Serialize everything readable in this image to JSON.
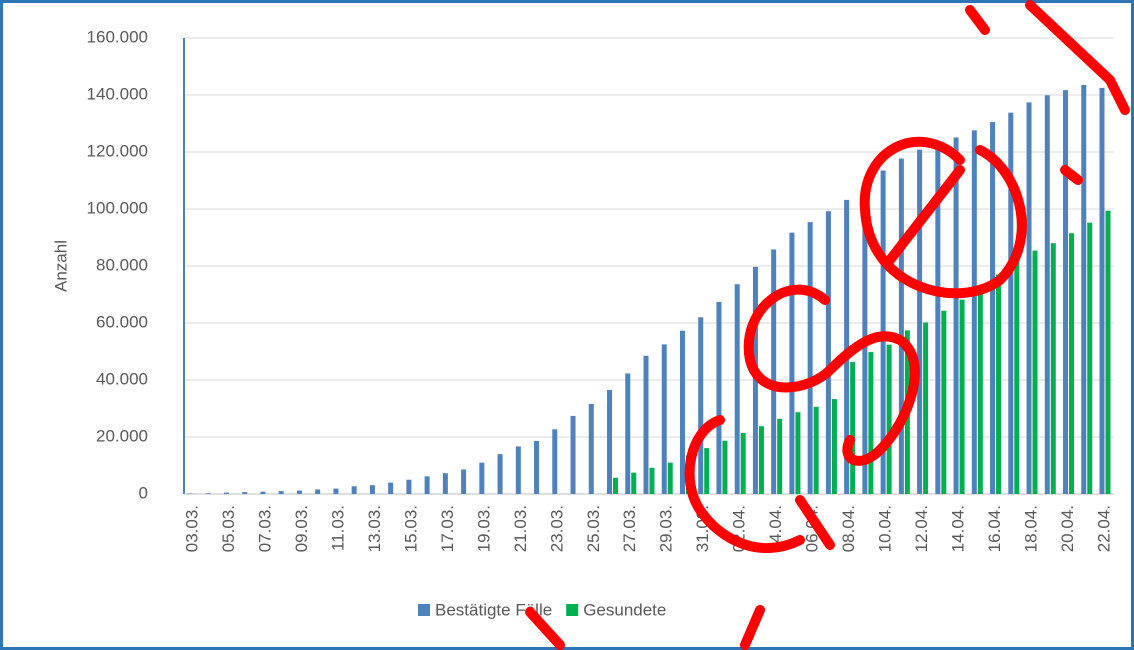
{
  "chart_data": {
    "type": "bar",
    "categories": [
      "03.03.",
      null,
      "05.03.",
      null,
      "07.03.",
      null,
      "09.03.",
      null,
      "11.03.",
      null,
      "13.03.",
      null,
      "15.03.",
      null,
      "17.03.",
      null,
      "19.03.",
      null,
      "21.03.",
      null,
      "23.03.",
      null,
      "25.03.",
      null,
      "27.03.",
      null,
      "29.03.",
      null,
      "31.03.",
      null,
      "02.04.",
      null,
      "04.04.",
      null,
      "06.04.",
      null,
      "08.04.",
      null,
      "10.04.",
      null,
      "12.04.",
      null,
      "14.04.",
      null,
      "16.04.",
      null,
      "18.04.",
      null,
      "20.04.",
      null,
      "22.04."
    ],
    "series": [
      {
        "name": "Bestätigte Fälle",
        "color": "#4f81bd",
        "values": [
          200,
          260,
          480,
          670,
          800,
          1000,
          1200,
          1600,
          1900,
          2700,
          3100,
          4000,
          5000,
          6200,
          7300,
          8600,
          11000,
          14000,
          16700,
          18600,
          22700,
          27400,
          31600,
          36500,
          42300,
          48500,
          52500,
          57300,
          62000,
          67400,
          73600,
          79700,
          85800,
          91700,
          95400,
          99200,
          103200,
          108200,
          113500,
          117700,
          120800,
          123000,
          125100,
          127600,
          130500,
          133800,
          137400,
          139900,
          141700,
          143500,
          142500
        ]
      },
      {
        "name": "Gesundete",
        "color": "#00b050",
        "values": [
          0,
          0,
          0,
          0,
          0,
          0,
          0,
          0,
          0,
          0,
          0,
          0,
          0,
          0,
          0,
          0,
          0,
          0,
          0,
          0,
          0,
          0,
          0,
          5700,
          7500,
          9200,
          11000,
          13500,
          16100,
          18700,
          21400,
          23800,
          26400,
          28700,
          30600,
          33300,
          46300,
          49800,
          52400,
          57400,
          60200,
          64300,
          68200,
          72600,
          77000,
          81800,
          85400,
          88000,
          91500,
          95200,
          99400
        ]
      }
    ],
    "y_label": "Anzahl",
    "ylim": [
      0,
      160000
    ],
    "yticks": [
      0,
      {
        "value": 20000,
        "label": "20.000"
      },
      {
        "value": 40000,
        "label": "40.000"
      },
      {
        "value": 60000,
        "label": "60.000"
      },
      {
        "value": 80000,
        "label": "80.000"
      },
      {
        "value": 100000,
        "label": "100.000"
      },
      {
        "value": 120000,
        "label": "120.000"
      },
      {
        "value": 140000,
        "label": "140.000"
      },
      {
        "value": 160000,
        "label": "160.000"
      }
    ],
    "grid": true,
    "legend": "bottom"
  }
}
